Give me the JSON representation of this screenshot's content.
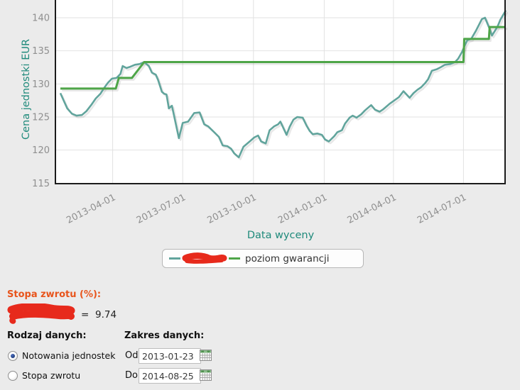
{
  "page": {
    "background": "#ebebeb"
  },
  "chart_data": {
    "type": "line",
    "title": "",
    "xlabel": "Data wyceny",
    "ylabel": "Cena jednostki EUR",
    "x_unit": "days since 2013-01-23",
    "x_range": [
      0,
      579
    ],
    "ylim_visible": [
      114.6,
      142.7
    ],
    "grid": true,
    "legend_position": "bottom",
    "y_ticks": [
      140,
      135,
      130,
      125,
      120,
      115
    ],
    "x_tick_days": [
      68,
      159,
      251,
      343,
      433,
      524
    ],
    "x_tick_labels": [
      "2013-04-01",
      "2013-07-01",
      "2013-10-01",
      "2014-01-01",
      "2014-04-01",
      "2014-07-01"
    ],
    "axis_title_color": "#1f8a7b",
    "tick_color": "#8f8f8f",
    "series": [
      {
        "id": "price-series",
        "name": "",
        "redacted": true,
        "color": "#61a49c",
        "width": 2.6,
        "points": [
          [
            0,
            128.6
          ],
          [
            5,
            127.3
          ],
          [
            9,
            126.3
          ],
          [
            15,
            125.5
          ],
          [
            21,
            125.2
          ],
          [
            28,
            125.3
          ],
          [
            34,
            125.9
          ],
          [
            40,
            126.8
          ],
          [
            46,
            127.8
          ],
          [
            52,
            128.5
          ],
          [
            57,
            129.4
          ],
          [
            62,
            130.2
          ],
          [
            67,
            130.8
          ],
          [
            73,
            130.9
          ],
          [
            78,
            131.5
          ],
          [
            81,
            132.7
          ],
          [
            86,
            132.4
          ],
          [
            91,
            132.6
          ],
          [
            97,
            132.9
          ],
          [
            103,
            133.0
          ],
          [
            109,
            133.3
          ],
          [
            115,
            132.7
          ],
          [
            119,
            131.7
          ],
          [
            124,
            131.4
          ],
          [
            127,
            130.6
          ],
          [
            132,
            128.8
          ],
          [
            135,
            128.5
          ],
          [
            138,
            128.4
          ],
          [
            141,
            126.3
          ],
          [
            145,
            126.7
          ],
          [
            154,
            121.8
          ],
          [
            159,
            124.1
          ],
          [
            166,
            124.3
          ],
          [
            174,
            125.6
          ],
          [
            181,
            125.7
          ],
          [
            187,
            123.9
          ],
          [
            192,
            123.6
          ],
          [
            200,
            122.7
          ],
          [
            206,
            122.0
          ],
          [
            211,
            120.7
          ],
          [
            217,
            120.6
          ],
          [
            222,
            120.2
          ],
          [
            226,
            119.5
          ],
          [
            232,
            118.9
          ],
          [
            238,
            120.5
          ],
          [
            247,
            121.4
          ],
          [
            252,
            121.9
          ],
          [
            257,
            122.2
          ],
          [
            261,
            121.3
          ],
          [
            267,
            121.0
          ],
          [
            272,
            123.0
          ],
          [
            278,
            123.6
          ],
          [
            283,
            123.9
          ],
          [
            286,
            124.3
          ],
          [
            294,
            122.3
          ],
          [
            298,
            123.5
          ],
          [
            303,
            124.6
          ],
          [
            308,
            125.0
          ],
          [
            315,
            124.9
          ],
          [
            320,
            123.7
          ],
          [
            324,
            122.9
          ],
          [
            328,
            122.4
          ],
          [
            334,
            122.5
          ],
          [
            340,
            122.3
          ],
          [
            344,
            121.6
          ],
          [
            349,
            121.3
          ],
          [
            356,
            122.1
          ],
          [
            360,
            122.7
          ],
          [
            366,
            123.0
          ],
          [
            370,
            124.0
          ],
          [
            376,
            124.9
          ],
          [
            380,
            125.2
          ],
          [
            385,
            124.9
          ],
          [
            391,
            125.4
          ],
          [
            396,
            126.0
          ],
          [
            404,
            126.8
          ],
          [
            409,
            126.1
          ],
          [
            415,
            125.8
          ],
          [
            419,
            126.1
          ],
          [
            423,
            126.5
          ],
          [
            428,
            127.0
          ],
          [
            434,
            127.5
          ],
          [
            440,
            128.0
          ],
          [
            446,
            128.9
          ],
          [
            450,
            128.4
          ],
          [
            454,
            127.9
          ],
          [
            459,
            128.6
          ],
          [
            464,
            129.1
          ],
          [
            469,
            129.5
          ],
          [
            474,
            130.1
          ],
          [
            478,
            130.7
          ],
          [
            483,
            132.0
          ],
          [
            489,
            132.2
          ],
          [
            494,
            132.5
          ],
          [
            500,
            132.9
          ],
          [
            507,
            133.0
          ],
          [
            513,
            133.3
          ],
          [
            517,
            133.8
          ],
          [
            522,
            134.8
          ],
          [
            526,
            135.9
          ],
          [
            529,
            136.6
          ],
          [
            534,
            136.8
          ],
          [
            540,
            138.0
          ],
          [
            548,
            139.8
          ],
          [
            552,
            140.0
          ],
          [
            557,
            138.6
          ],
          [
            561,
            137.3
          ],
          [
            568,
            138.6
          ],
          [
            572,
            139.7
          ],
          [
            579,
            141.1
          ]
        ]
      },
      {
        "id": "guarantee-series",
        "name": "poziom gwarancji",
        "redacted": false,
        "color": "#4ea548",
        "width": 3,
        "points": [
          [
            0,
            129.3
          ],
          [
            72,
            129.3
          ],
          [
            76,
            130.9
          ],
          [
            93,
            130.9
          ],
          [
            109,
            133.3
          ],
          [
            524,
            133.3
          ],
          [
            525,
            136.8
          ],
          [
            557,
            136.8
          ],
          [
            558,
            138.6
          ],
          [
            579,
            138.6
          ]
        ]
      }
    ]
  },
  "legend": {
    "price_label_redacted": true,
    "guarantee_label": "poziom gwarancji"
  },
  "stats": {
    "heading": "Stopa zwrotu (%):",
    "series_redacted": true,
    "equals": "=",
    "value": "9.74"
  },
  "form": {
    "data_type_header": "Rodzaj danych:",
    "range_header": "Zakres danych:",
    "radios": [
      {
        "label": "Notowania jednostek",
        "selected": true
      },
      {
        "label": "Stopa zwrotu",
        "selected": false
      }
    ],
    "from_label": "Od",
    "from_value": "2013-01-23",
    "to_label": "Do",
    "to_value": "2014-08-25"
  },
  "colors": {
    "redaction_red": "#e72a1c",
    "accent_teal": "#1f8a7b",
    "accent_orange": "#e8541b"
  }
}
